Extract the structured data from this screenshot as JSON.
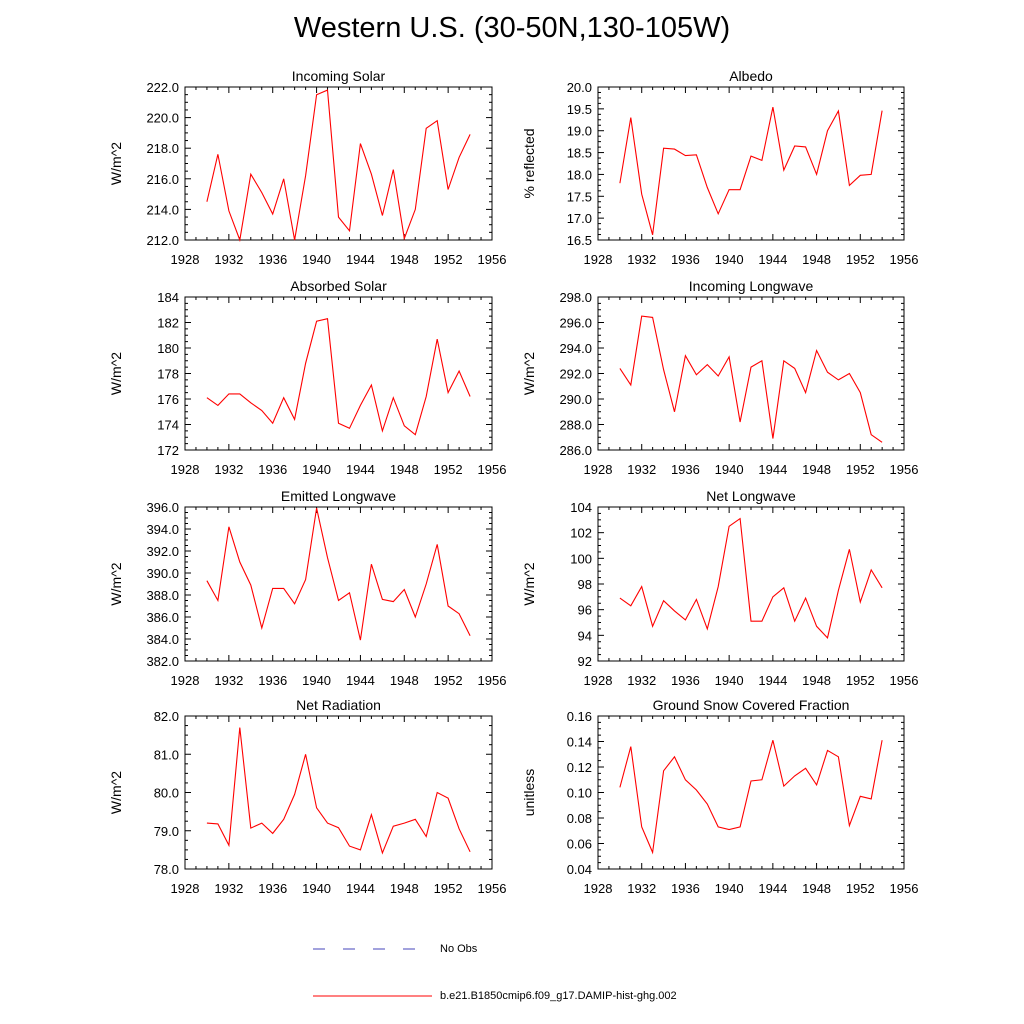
{
  "title": "Western U.S. (30-50N,130-105W)",
  "line_color": "#ff0000",
  "obs_color": "#4444bb",
  "legend": {
    "obs_label": "No Obs",
    "model_label": "b.e21.B1850cmip6.f09_g17.DAMIP-hist-ghg.002"
  },
  "chart_data": [
    {
      "type": "line",
      "title": "Incoming Solar",
      "ylabel": "W/m^2",
      "xlabel": "",
      "xlim": [
        1928,
        1956
      ],
      "xticks": [
        "1928",
        "1932",
        "1936",
        "1940",
        "1944",
        "1948",
        "1952",
        "1956"
      ],
      "ylim": [
        212,
        222
      ],
      "yticks": [
        "212.0",
        "214.0",
        "216.0",
        "218.0",
        "220.0",
        "222.0"
      ],
      "x": [
        1930,
        1931,
        1932,
        1933,
        1934,
        1935,
        1936,
        1937,
        1938,
        1939,
        1940,
        1941,
        1942,
        1943,
        1944,
        1945,
        1946,
        1947,
        1948,
        1949,
        1950,
        1951,
        1952,
        1953,
        1954
      ],
      "values": [
        214.5,
        217.6,
        213.9,
        212.0,
        216.3,
        215.1,
        213.7,
        216.0,
        212.0,
        216.2,
        221.5,
        221.8,
        213.5,
        212.6,
        218.3,
        216.3,
        213.6,
        216.6,
        212.1,
        214.0,
        219.3,
        219.8,
        215.3,
        217.4,
        218.9
      ]
    },
    {
      "type": "line",
      "title": "Albedo",
      "ylabel": "% reflected",
      "xlabel": "",
      "xlim": [
        1928,
        1956
      ],
      "xticks": [
        "1928",
        "1932",
        "1936",
        "1940",
        "1944",
        "1948",
        "1952",
        "1956"
      ],
      "ylim": [
        16.5,
        20.0
      ],
      "yticks": [
        "16.5",
        "17.0",
        "17.5",
        "18.0",
        "18.5",
        "19.0",
        "19.5",
        "20.0"
      ],
      "x": [
        1930,
        1931,
        1932,
        1933,
        1934,
        1935,
        1936,
        1937,
        1938,
        1939,
        1940,
        1941,
        1942,
        1943,
        1944,
        1945,
        1946,
        1947,
        1948,
        1949,
        1950,
        1951,
        1952,
        1953,
        1954
      ],
      "values": [
        17.8,
        19.3,
        17.55,
        16.62,
        18.6,
        18.58,
        18.43,
        18.45,
        17.7,
        17.1,
        17.65,
        17.65,
        18.42,
        18.32,
        19.54,
        18.1,
        18.65,
        18.63,
        18.0,
        19.0,
        19.45,
        17.75,
        17.98,
        18.0,
        19.46
      ]
    },
    {
      "type": "line",
      "title": "Absorbed Solar",
      "ylabel": "W/m^2",
      "xlabel": "",
      "xlim": [
        1928,
        1956
      ],
      "xticks": [
        "1928",
        "1932",
        "1936",
        "1940",
        "1944",
        "1948",
        "1952",
        "1956"
      ],
      "ylim": [
        172,
        184
      ],
      "yticks": [
        "172",
        "174",
        "176",
        "178",
        "180",
        "182",
        "184"
      ],
      "x": [
        1930,
        1931,
        1932,
        1933,
        1934,
        1935,
        1936,
        1937,
        1938,
        1939,
        1940,
        1941,
        1942,
        1943,
        1944,
        1945,
        1946,
        1947,
        1948,
        1949,
        1950,
        1951,
        1952,
        1953,
        1954
      ],
      "values": [
        176.1,
        175.5,
        176.4,
        176.4,
        175.7,
        175.1,
        174.1,
        176.1,
        174.4,
        178.8,
        182.1,
        182.3,
        174.1,
        173.7,
        175.5,
        177.1,
        173.5,
        176.1,
        173.9,
        173.2,
        176.2,
        180.7,
        176.5,
        178.2,
        176.2
      ]
    },
    {
      "type": "line",
      "title": "Incoming Longwave",
      "ylabel": "W/m^2",
      "xlabel": "",
      "xlim": [
        1928,
        1956
      ],
      "xticks": [
        "1928",
        "1932",
        "1936",
        "1940",
        "1944",
        "1948",
        "1952",
        "1956"
      ],
      "ylim": [
        286,
        298
      ],
      "yticks": [
        "286.0",
        "288.0",
        "290.0",
        "292.0",
        "294.0",
        "296.0",
        "298.0"
      ],
      "x": [
        1930,
        1931,
        1932,
        1933,
        1934,
        1935,
        1936,
        1937,
        1938,
        1939,
        1940,
        1941,
        1942,
        1943,
        1944,
        1945,
        1946,
        1947,
        1948,
        1949,
        1950,
        1951,
        1952,
        1953,
        1954
      ],
      "values": [
        292.4,
        291.1,
        296.5,
        296.4,
        292.3,
        289.0,
        293.4,
        291.9,
        292.7,
        291.8,
        293.3,
        288.2,
        292.5,
        293.0,
        286.9,
        293.0,
        292.4,
        290.5,
        293.8,
        292.1,
        291.5,
        292.0,
        290.5,
        287.2,
        286.6
      ]
    },
    {
      "type": "line",
      "title": "Emitted Longwave",
      "ylabel": "W/m^2",
      "xlabel": "",
      "xlim": [
        1928,
        1956
      ],
      "xticks": [
        "1928",
        "1932",
        "1936",
        "1940",
        "1944",
        "1948",
        "1952",
        "1956"
      ],
      "ylim": [
        382,
        396
      ],
      "yticks": [
        "382.0",
        "384.0",
        "386.0",
        "388.0",
        "390.0",
        "392.0",
        "394.0",
        "396.0"
      ],
      "x": [
        1930,
        1931,
        1932,
        1933,
        1934,
        1935,
        1936,
        1937,
        1938,
        1939,
        1940,
        1941,
        1942,
        1943,
        1944,
        1945,
        1946,
        1947,
        1948,
        1949,
        1950,
        1951,
        1952,
        1953,
        1954
      ],
      "values": [
        389.3,
        387.5,
        394.2,
        391.0,
        388.9,
        385.0,
        388.6,
        388.6,
        387.2,
        389.4,
        395.9,
        391.4,
        387.5,
        388.2,
        383.9,
        390.8,
        387.6,
        387.4,
        388.5,
        386.0,
        389.0,
        392.6,
        387.0,
        386.3,
        384.3
      ]
    },
    {
      "type": "line",
      "title": "Net Longwave",
      "ylabel": "W/m^2",
      "xlabel": "",
      "xlim": [
        1928,
        1956
      ],
      "xticks": [
        "1928",
        "1932",
        "1936",
        "1940",
        "1944",
        "1948",
        "1952",
        "1956"
      ],
      "ylim": [
        92,
        104
      ],
      "yticks": [
        "92",
        "94",
        "96",
        "98",
        "100",
        "102",
        "104"
      ],
      "x": [
        1930,
        1931,
        1932,
        1933,
        1934,
        1935,
        1936,
        1937,
        1938,
        1939,
        1940,
        1941,
        1942,
        1943,
        1944,
        1945,
        1946,
        1947,
        1948,
        1949,
        1950,
        1951,
        1952,
        1953,
        1954
      ],
      "values": [
        96.9,
        96.3,
        97.8,
        94.7,
        96.7,
        95.9,
        95.2,
        96.8,
        94.5,
        97.8,
        102.5,
        103.1,
        95.1,
        95.1,
        97.0,
        97.7,
        95.1,
        96.9,
        94.7,
        93.8,
        97.5,
        100.7,
        96.6,
        99.1,
        97.7
      ]
    },
    {
      "type": "line",
      "title": "Net Radiation",
      "ylabel": "W/m^2",
      "xlabel": "",
      "xlim": [
        1928,
        1956
      ],
      "xticks": [
        "1928",
        "1932",
        "1936",
        "1940",
        "1944",
        "1948",
        "1952",
        "1956"
      ],
      "ylim": [
        78,
        82
      ],
      "yticks": [
        "78.0",
        "79.0",
        "80.0",
        "81.0",
        "82.0"
      ],
      "x": [
        1930,
        1931,
        1932,
        1933,
        1934,
        1935,
        1936,
        1937,
        1938,
        1939,
        1940,
        1941,
        1942,
        1943,
        1944,
        1945,
        1946,
        1947,
        1948,
        1949,
        1950,
        1951,
        1952,
        1953,
        1954
      ],
      "values": [
        79.2,
        79.18,
        78.62,
        81.7,
        79.07,
        79.2,
        78.93,
        79.3,
        79.95,
        81.0,
        79.6,
        79.2,
        79.08,
        78.6,
        78.5,
        79.42,
        78.42,
        79.12,
        79.2,
        79.3,
        78.85,
        80.0,
        79.85,
        79.05,
        78.45
      ]
    },
    {
      "type": "line",
      "title": "Ground Snow Covered Fraction",
      "ylabel": "unitless",
      "xlabel": "",
      "xlim": [
        1928,
        1956
      ],
      "xticks": [
        "1928",
        "1932",
        "1936",
        "1940",
        "1944",
        "1948",
        "1952",
        "1956"
      ],
      "ylim": [
        0.04,
        0.16
      ],
      "yticks": [
        "0.04",
        "0.06",
        "0.08",
        "0.10",
        "0.12",
        "0.14",
        "0.16"
      ],
      "x": [
        1930,
        1931,
        1932,
        1933,
        1934,
        1935,
        1936,
        1937,
        1938,
        1939,
        1940,
        1941,
        1942,
        1943,
        1944,
        1945,
        1946,
        1947,
        1948,
        1949,
        1950,
        1951,
        1952,
        1953,
        1954
      ],
      "values": [
        0.104,
        0.136,
        0.073,
        0.053,
        0.117,
        0.128,
        0.11,
        0.102,
        0.091,
        0.073,
        0.071,
        0.073,
        0.109,
        0.11,
        0.141,
        0.105,
        0.113,
        0.119,
        0.106,
        0.133,
        0.128,
        0.074,
        0.097,
        0.095,
        0.141
      ]
    }
  ]
}
